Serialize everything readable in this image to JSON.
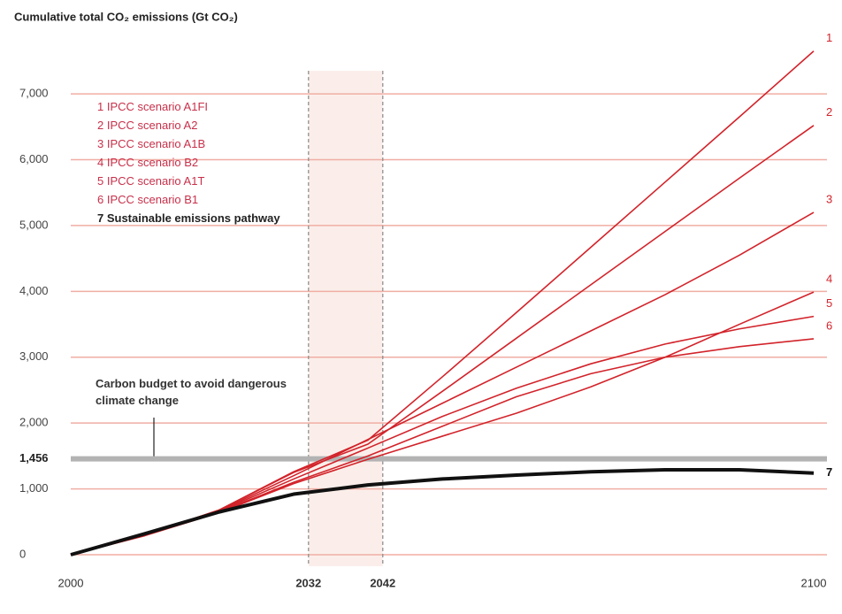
{
  "chart_data": {
    "type": "line",
    "title": "Cumulative total CO₂ emissions (Gt CO₂)",
    "x": [
      2000,
      2010,
      2020,
      2030,
      2040,
      2050,
      2060,
      2070,
      2080,
      2090,
      2100
    ],
    "xlim": [
      2000,
      2100
    ],
    "xticks": [
      2000,
      2032,
      2042,
      2100
    ],
    "highlight_range": [
      2032,
      2042
    ],
    "ylim": [
      0,
      7700
    ],
    "yticks": [
      0,
      {
        "value": 1000,
        "label": "1,000"
      },
      {
        "value": 2000,
        "label": "2,000"
      },
      {
        "value": 3000,
        "label": "3,000"
      },
      {
        "value": 4000,
        "label": "4,000"
      },
      {
        "value": 5000,
        "label": "5,000"
      },
      {
        "value": 6000,
        "label": "6,000"
      },
      {
        "value": 7000,
        "label": "7,000"
      }
    ],
    "grid": true,
    "budget": {
      "value": 1456,
      "label": "1,456",
      "annotation": "Carbon budget to avoid dangerous climate change",
      "color": "#b3b3b3"
    },
    "series": [
      {
        "name": "1 IPCC scenario A1FI",
        "end_label": "1",
        "color": "#d2232a",
        "values": [
          0,
          300,
          680,
          1260,
          1740,
          2700,
          3680,
          4670,
          5660,
          6650,
          7650
        ]
      },
      {
        "name": "2 IPCC scenario A2",
        "end_label": "2",
        "color": "#d2232a",
        "values": [
          0,
          300,
          680,
          1250,
          1680,
          2480,
          3290,
          4100,
          4910,
          5720,
          6520
        ]
      },
      {
        "name": "3 IPCC scenario A1B",
        "end_label": "3",
        "color": "#d2232a",
        "values": [
          0,
          300,
          670,
          1200,
          1750,
          2300,
          2850,
          3400,
          3950,
          4550,
          5200
        ]
      },
      {
        "name": "4 IPCC scenario B2",
        "end_label": "4",
        "color": "#d2232a",
        "values": [
          0,
          290,
          640,
          1080,
          1450,
          1800,
          2150,
          2550,
          3000,
          3500,
          3990
        ]
      },
      {
        "name": "5 IPCC scenario A1T",
        "end_label": "5",
        "color": "#d2232a",
        "values": [
          0,
          295,
          660,
          1150,
          1620,
          2100,
          2530,
          2900,
          3200,
          3430,
          3620
        ]
      },
      {
        "name": "6 IPCC scenario B1",
        "end_label": "6",
        "color": "#d2232a",
        "values": [
          0,
          295,
          650,
          1100,
          1500,
          1950,
          2400,
          2750,
          3000,
          3160,
          3280
        ]
      },
      {
        "name": "7 Sustainable emissions pathway",
        "end_label": "7",
        "color": "#111111",
        "values": [
          0,
          320,
          650,
          920,
          1060,
          1150,
          1210,
          1260,
          1290,
          1290,
          1240
        ]
      }
    ]
  }
}
